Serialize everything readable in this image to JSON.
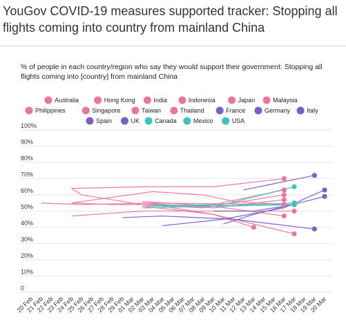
{
  "title": "YouGov COVID-19 measures supported tracker: Stopping all flights coming into country from mainland China",
  "subtitle": "% of people in each country/region who say they would support their government: Stopping all flights coming into [country] from mainland China",
  "chart_data": {
    "type": "line",
    "title": "YouGov COVID-19 measures supported tracker: Stopping all flights coming into country from mainland China",
    "subtitle": "% of people in each country/region who say they would support their government: Stopping all flights coming into [country] from mainland China",
    "xlabel": "",
    "ylabel": "",
    "ylim": [
      0,
      100
    ],
    "y_ticks": [
      "0",
      "10%",
      "20%",
      "30%",
      "40%",
      "50%",
      "60%",
      "70%",
      "80%",
      "90%",
      "100%"
    ],
    "x_ticks": [
      "20 Feb",
      "21 Feb",
      "22 Feb",
      "23 Feb",
      "24 Feb",
      "25 Feb",
      "26 Feb",
      "27 Feb",
      "28 Feb",
      "29 Feb",
      "01 Mar",
      "02 Mar",
      "03 Mar",
      "04 Mar",
      "05 Mar",
      "06 Mar",
      "07 Mar",
      "08 Mar",
      "09 Mar",
      "10 Mar",
      "11 Mar",
      "12 Mar",
      "13 Mar",
      "14 Mar",
      "15 Mar",
      "16 Mar",
      "17 Mar",
      "18 Mar",
      "19 Mar",
      "20 Mar"
    ],
    "grid": true,
    "legend_position": "top",
    "series": [
      {
        "name": "Australia",
        "color": "#e8769f",
        "points": [
          [
            "21 Feb",
            55
          ],
          [
            "25 Feb",
            54
          ],
          [
            "03 Mar",
            55
          ],
          [
            "17 Mar",
            54
          ]
        ]
      },
      {
        "name": "Hong Kong",
        "color": "#e8769f",
        "points": [
          [
            "24 Feb",
            64
          ],
          [
            "02 Mar",
            65
          ],
          [
            "09 Mar",
            65
          ],
          [
            "16 Mar",
            70
          ]
        ]
      },
      {
        "name": "India",
        "color": "#e8769f",
        "points": [
          [
            "24 Feb",
            55
          ],
          [
            "03 Mar",
            62
          ],
          [
            "08 Mar",
            60
          ],
          [
            "11 Mar",
            56
          ],
          [
            "16 Mar",
            54
          ]
        ]
      },
      {
        "name": "Indonesia",
        "color": "#e8769f",
        "points": [
          [
            "24 Feb",
            64
          ],
          [
            "25 Feb",
            60
          ],
          [
            "02 Mar",
            54
          ],
          [
            "08 Mar",
            52
          ],
          [
            "16 Mar",
            60
          ]
        ]
      },
      {
        "name": "Japan",
        "color": "#e8769f",
        "points": [
          [
            "24 Feb",
            47
          ],
          [
            "02 Mar",
            50
          ],
          [
            "11 Mar",
            50
          ],
          [
            "17 Mar",
            50
          ]
        ]
      },
      {
        "name": "Malaysia",
        "color": "#e8769f",
        "points": [
          [
            "24 Feb",
            55
          ],
          [
            "28 Feb",
            54
          ],
          [
            "03 Mar",
            54
          ],
          [
            "09 Mar",
            48
          ],
          [
            "13 Mar",
            40
          ]
        ]
      },
      {
        "name": "Philippines",
        "color": "#e8769f",
        "points": [
          [
            "02 Mar",
            53
          ],
          [
            "09 Mar",
            54
          ],
          [
            "16 Mar",
            63
          ]
        ]
      },
      {
        "name": "Singapore",
        "color": "#e8769f",
        "points": [
          [
            "02 Mar",
            56
          ],
          [
            "09 Mar",
            53
          ],
          [
            "16 Mar",
            47
          ]
        ]
      },
      {
        "name": "Taiwan",
        "color": "#e8769f",
        "points": [
          [
            "02 Mar",
            55
          ],
          [
            "09 Mar",
            52
          ],
          [
            "16 Mar",
            57
          ]
        ]
      },
      {
        "name": "Thailand",
        "color": "#e8769f",
        "points": [
          [
            "02 Mar",
            53
          ],
          [
            "09 Mar",
            48
          ],
          [
            "17 Mar",
            36
          ]
        ]
      },
      {
        "name": "France",
        "color": "#7b5fc4",
        "points": [
          [
            "29 Feb",
            46
          ],
          [
            "04 Mar",
            47
          ],
          [
            "11 Mar",
            45
          ],
          [
            "19 Mar",
            39
          ]
        ]
      },
      {
        "name": "Germany",
        "color": "#7b5fc4",
        "points": [
          [
            "04 Mar",
            41
          ],
          [
            "10 Mar",
            45
          ],
          [
            "16 Mar",
            52
          ],
          [
            "20 Mar",
            63
          ]
        ]
      },
      {
        "name": "Italy",
        "color": "#7b5fc4",
        "points": [
          [
            "12 Mar",
            63
          ],
          [
            "19 Mar",
            72
          ]
        ]
      },
      {
        "name": "Spain",
        "color": "#7b5fc4",
        "points": [
          [
            "10 Mar",
            42
          ],
          [
            "13 Mar",
            48
          ],
          [
            "20 Mar",
            59
          ]
        ]
      },
      {
        "name": "UK",
        "color": "#7b5fc4",
        "points": [
          [
            "09 Mar",
            50
          ],
          [
            "13 Mar",
            50
          ],
          [
            "17 Mar",
            54
          ]
        ]
      },
      {
        "name": "Canada",
        "color": "#3cc4c0",
        "points": [
          [
            "02 Mar",
            52
          ],
          [
            "09 Mar",
            53
          ],
          [
            "17 Mar",
            55
          ]
        ]
      },
      {
        "name": "Mexico",
        "color": "#3cc4c0",
        "points": [
          [
            "03 Mar",
            53
          ],
          [
            "10 Mar",
            54
          ],
          [
            "17 Mar",
            65
          ]
        ]
      },
      {
        "name": "USA",
        "color": "#3cc4c0",
        "points": [
          [
            "03 Mar",
            54
          ],
          [
            "10 Mar",
            53
          ],
          [
            "17 Mar",
            54
          ]
        ]
      }
    ]
  }
}
